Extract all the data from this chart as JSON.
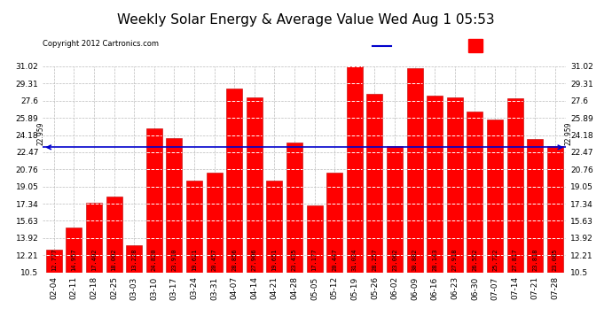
{
  "title": "Weekly Solar Energy & Average Value Wed Aug 1 05:53",
  "copyright": "Copyright 2012 Cartronics.com",
  "categories": [
    "02-04",
    "02-11",
    "02-18",
    "02-25",
    "03-03",
    "03-10",
    "03-17",
    "03-24",
    "03-31",
    "04-07",
    "04-14",
    "04-21",
    "04-28",
    "05-05",
    "05-12",
    "05-19",
    "05-26",
    "06-02",
    "06-09",
    "06-16",
    "06-23",
    "06-30",
    "07-07",
    "07-14",
    "07-21",
    "07-28"
  ],
  "values": [
    12.777,
    14.957,
    17.402,
    18.002,
    13.228,
    24.82,
    23.91,
    19.621,
    20.457,
    28.856,
    27.906,
    19.651,
    23.435,
    17.177,
    20.447,
    31.024,
    28.257,
    23.062,
    30.882,
    28.143,
    27.918,
    26.552,
    25.722,
    27.817,
    23.818,
    23.085
  ],
  "average": 22.959,
  "bar_color": "#ff0000",
  "bar_edge_color": "#bb0000",
  "average_line_color": "#0000cc",
  "background_color": "#ffffff",
  "plot_bg_color": "#ffffff",
  "grid_color": "#bbbbbb",
  "yticks_left": [
    10.5,
    12.21,
    13.92,
    15.63,
    17.34,
    19.05,
    20.76,
    22.47,
    24.18,
    25.89,
    27.6,
    29.31,
    31.02
  ],
  "ylim": [
    10.5,
    31.02
  ],
  "legend_avg_color": "#0000cc",
  "legend_daily_color": "#ff0000",
  "legend_bg_color": "#000080",
  "title_fontsize": 11,
  "tick_fontsize": 6.5,
  "avg_label": "22.959",
  "dpi": 100
}
